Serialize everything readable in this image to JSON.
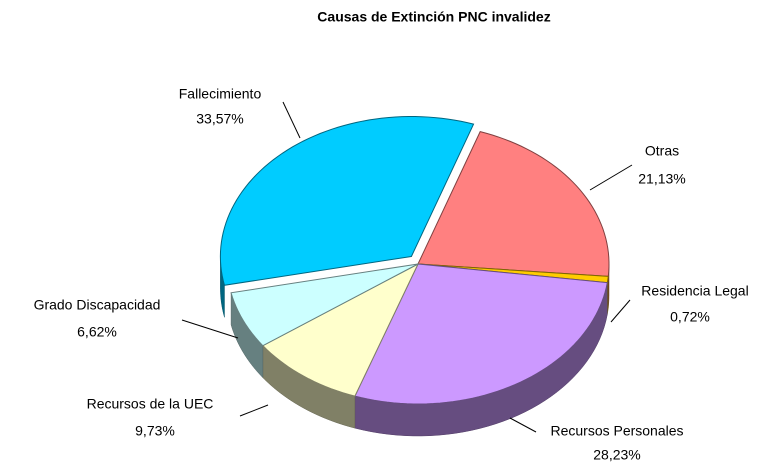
{
  "chart_data": {
    "type": "pie",
    "title": "Causas de Extinción PNC invalidez",
    "categories": [
      "Otras",
      "Residencia Legal",
      "Recursos Personales",
      "Recursos de la UEC",
      "Grado Discapacidad",
      "Fallecimiento"
    ],
    "values": [
      21.13,
      0.72,
      28.23,
      9.73,
      6.62,
      33.57
    ],
    "value_labels": [
      "21,13%",
      "0,72%",
      "28,23%",
      "9,73%",
      "6,62%",
      "33,57%"
    ],
    "colors": [
      "#ff8080",
      "#ffcc00",
      "#cc99ff",
      "#ffffcc",
      "#ccffff",
      "#00ccff"
    ]
  }
}
